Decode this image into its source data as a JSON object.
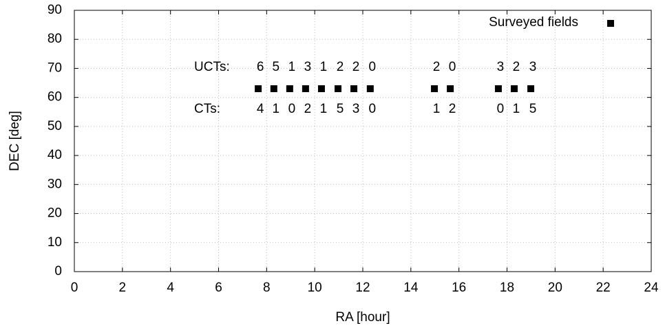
{
  "chart_data": {
    "type": "scatter",
    "xlabel": "RA [hour]",
    "ylabel": "DEC [deg]",
    "xlim": [
      0,
      24
    ],
    "xticks": [
      0,
      2,
      4,
      6,
      8,
      10,
      12,
      14,
      16,
      18,
      20,
      22,
      24
    ],
    "ylim": [
      0,
      90
    ],
    "yticks": [
      0,
      10,
      20,
      30,
      40,
      50,
      60,
      70,
      80,
      90
    ],
    "grid": true,
    "legend": "top-right",
    "series": [
      {
        "name": "Surveyed fields",
        "color": "#000000",
        "x": [
          7.65,
          8.3,
          8.96,
          9.62,
          10.28,
          10.97,
          11.63,
          12.31,
          14.98,
          15.64,
          17.64,
          18.3,
          18.99
        ],
        "values": [
          63,
          63,
          63,
          63,
          63,
          63,
          63,
          63,
          63,
          63,
          63,
          63,
          63
        ]
      }
    ],
    "annotations": {
      "uct_label": "UCTs:",
      "uct": [
        6,
        5,
        1,
        3,
        1,
        2,
        2,
        0,
        2,
        0,
        3,
        2,
        3
      ],
      "ct_label": "CTs:",
      "ct": [
        4,
        1,
        0,
        2,
        1,
        5,
        3,
        0,
        1,
        2,
        0,
        1,
        5
      ]
    }
  }
}
